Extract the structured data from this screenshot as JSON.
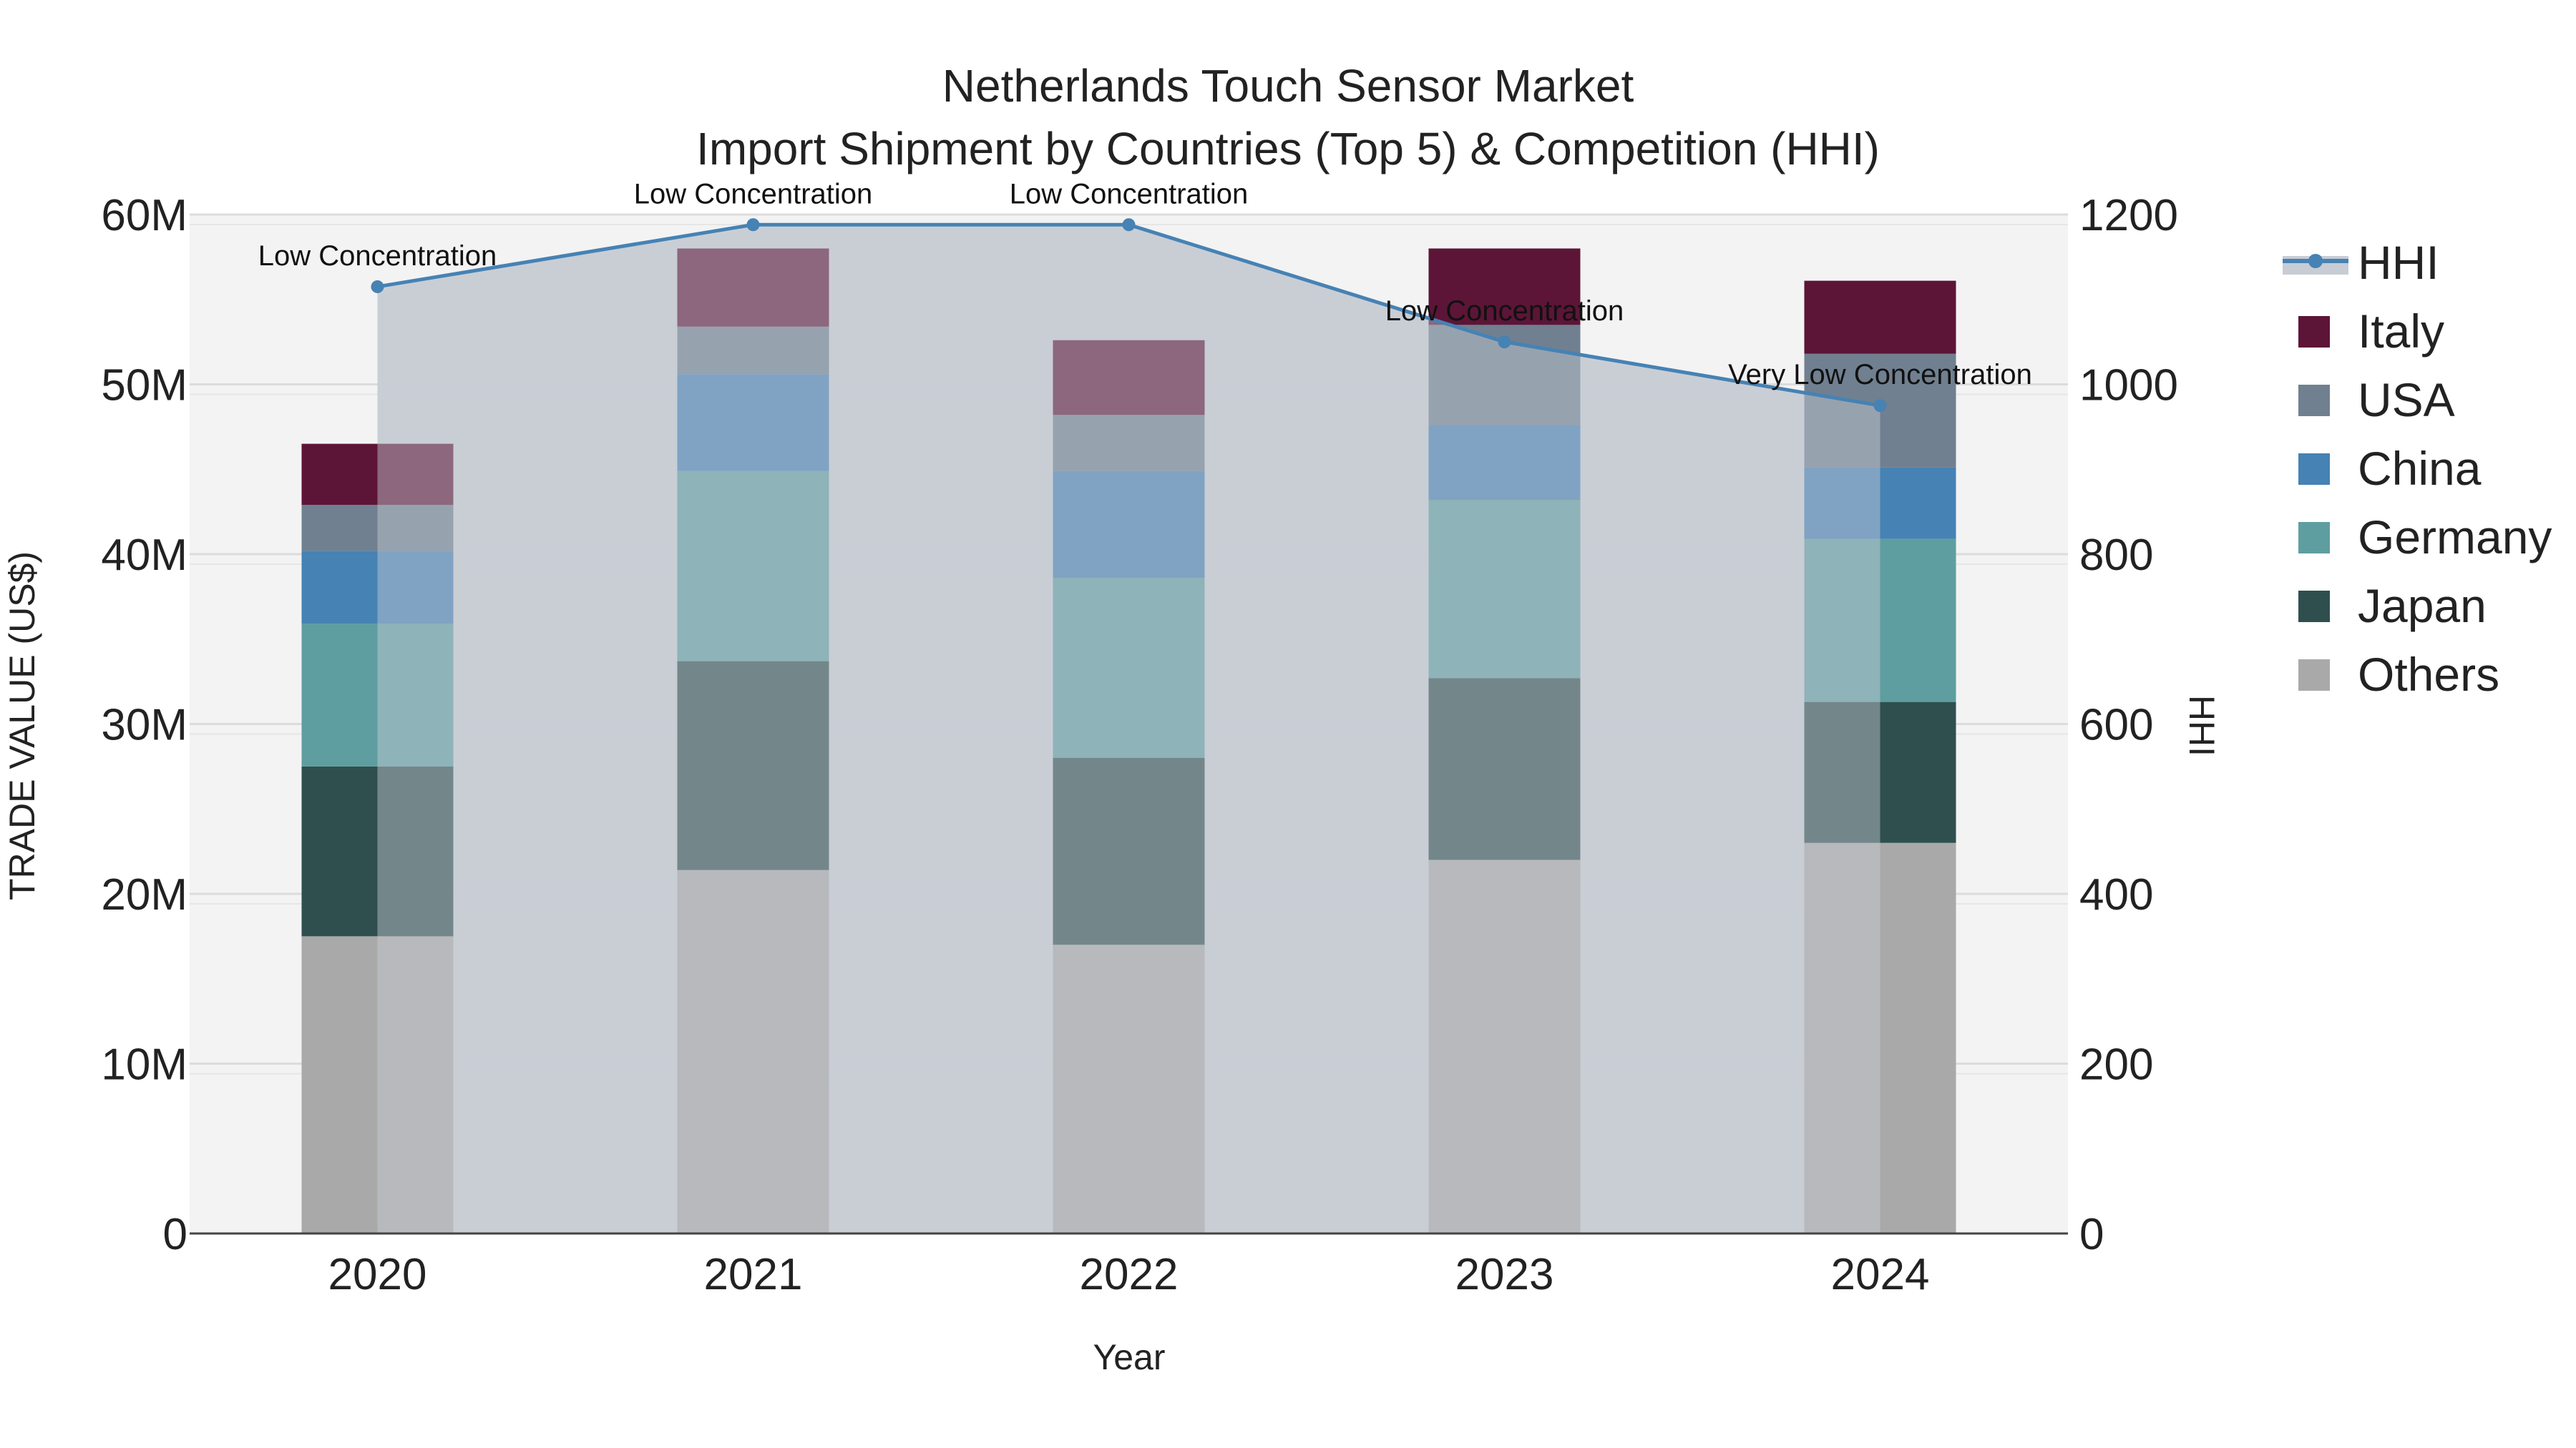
{
  "chart_data": {
    "type": "bar",
    "title": "Netherlands Touch Sensor Market",
    "subtitle": "Import Shipment by Countries (Top 5) & Competition (HHI)",
    "xlabel": "Year",
    "ylabel": "TRADE VALUE (US$)",
    "y2label": "HHI",
    "ylim": [
      0,
      60000000
    ],
    "y2lim": [
      0,
      1200
    ],
    "yticks": [
      {
        "value": 0,
        "label": "0"
      },
      {
        "value": 10000000,
        "label": "10M"
      },
      {
        "value": 20000000,
        "label": "20M"
      },
      {
        "value": 30000000,
        "label": "30M"
      },
      {
        "value": 40000000,
        "label": "40M"
      },
      {
        "value": 50000000,
        "label": "50M"
      },
      {
        "value": 60000000,
        "label": "60M"
      }
    ],
    "y2ticks": [
      {
        "value": 0,
        "label": "0"
      },
      {
        "value": 200,
        "label": "200"
      },
      {
        "value": 400,
        "label": "400"
      },
      {
        "value": 600,
        "label": "600"
      },
      {
        "value": 800,
        "label": "800"
      },
      {
        "value": 1000,
        "label": "1000"
      },
      {
        "value": 1200,
        "label": "1200"
      }
    ],
    "categories": [
      "2020",
      "2021",
      "2022",
      "2023",
      "2024"
    ],
    "series": [
      {
        "name": "Others",
        "color": "#a9a9a9",
        "values": [
          17500000,
          21400000,
          17000000,
          22000000,
          23000000
        ]
      },
      {
        "name": "Japan",
        "color": "#2f4f4f",
        "values": [
          10000000,
          12300000,
          11000000,
          10700000,
          8300000
        ]
      },
      {
        "name": "Germany",
        "color": "#5f9ea0",
        "values": [
          8400000,
          11200000,
          10600000,
          10500000,
          9600000
        ]
      },
      {
        "name": "China",
        "color": "#4682b4",
        "values": [
          4300000,
          5700000,
          6300000,
          4400000,
          4200000
        ]
      },
      {
        "name": "USA",
        "color": "#708090",
        "values": [
          2700000,
          2800000,
          3300000,
          5900000,
          6700000
        ]
      },
      {
        "name": "Italy",
        "color": "#5c1537",
        "values": [
          3600000,
          4600000,
          4400000,
          4500000,
          4300000
        ]
      }
    ],
    "legend_order": [
      "HHI",
      "Italy",
      "USA",
      "China",
      "Germany",
      "Japan",
      "Others"
    ],
    "hhi": {
      "name": "HHI",
      "color": "#4682b4",
      "fill": "#c8ccd4",
      "values": [
        1115,
        1188,
        1188,
        1050,
        975
      ],
      "annotations": [
        "Low Concentration",
        "Low Concentration",
        "Low Concentration",
        "Low Concentration",
        "Very Low Concentration"
      ]
    },
    "grid": true,
    "legend_position": "right"
  }
}
